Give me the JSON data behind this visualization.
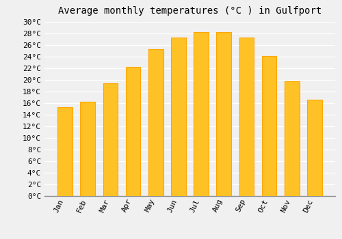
{
  "months": [
    "Jan",
    "Feb",
    "Mar",
    "Apr",
    "May",
    "Jun",
    "Jul",
    "Aug",
    "Sep",
    "Oct",
    "Nov",
    "Dec"
  ],
  "temperatures": [
    15.3,
    16.2,
    19.4,
    22.2,
    25.2,
    27.2,
    28.2,
    28.2,
    27.2,
    24.1,
    19.7,
    16.6
  ],
  "bar_color_face": "#FFC226",
  "bar_color_edge": "#FFA500",
  "title": "Average monthly temperatures (°C ) in Gulfport",
  "ylim": [
    0,
    29
  ],
  "ytick_step": 2,
  "background_color": "#F0F0F0",
  "grid_color": "#FFFFFF",
  "title_fontsize": 10,
  "tick_fontsize": 8,
  "font_family": "monospace",
  "label_rotation": 65,
  "bar_width": 0.65
}
